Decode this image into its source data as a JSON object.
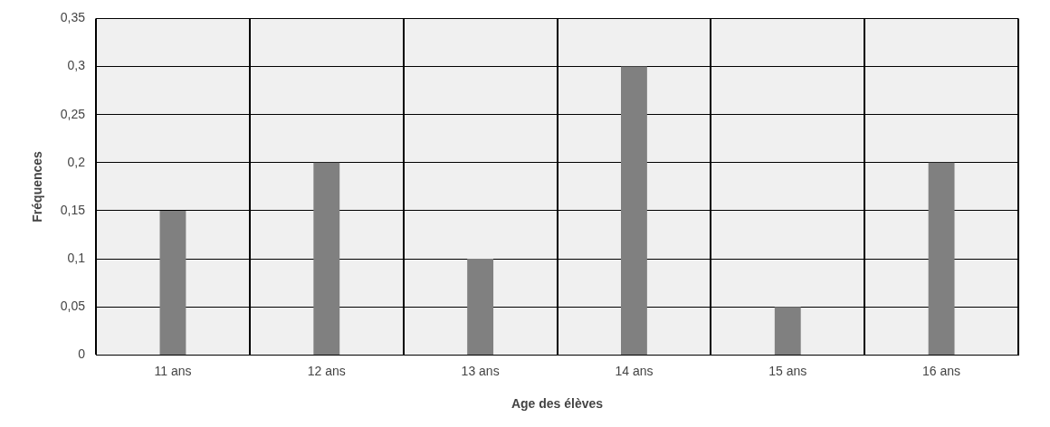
{
  "chart_data": {
    "type": "bar",
    "xlabel": "Age des élèves",
    "ylabel": "Fréquences",
    "categories": [
      "11 ans",
      "12 ans",
      "13 ans",
      "14 ans",
      "15 ans",
      "16 ans"
    ],
    "values": [
      0.15,
      0.2,
      0.1,
      0.3,
      0.05,
      0.2
    ],
    "color": "#808080",
    "ylim": [
      0,
      0.35
    ],
    "yticks": [
      {
        "value": 0,
        "label": "0"
      },
      {
        "value": 0.05,
        "label": "0,05"
      },
      {
        "value": 0.1,
        "label": "0,1"
      },
      {
        "value": 0.15,
        "label": "0,15"
      },
      {
        "value": 0.2,
        "label": "0,2"
      },
      {
        "value": 0.25,
        "label": "0,25"
      },
      {
        "value": 0.3,
        "label": "0,3"
      },
      {
        "value": 0.35,
        "label": "0,35"
      }
    ],
    "grid": true,
    "legend": false
  }
}
